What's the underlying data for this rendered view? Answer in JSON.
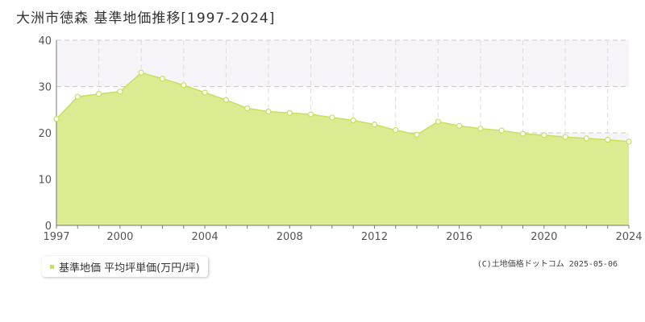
{
  "title": "大洲市徳森  基準地価推移[1997-2024]",
  "legend": {
    "label": "基準地価 平均坪単価(万円/坪)"
  },
  "copyright": "(C)土地価格ドットコム 2025-05-06",
  "colors": {
    "fill": "#dbeb92",
    "line": "#c8e05a",
    "point_fill": "#ffffff",
    "grid": "#cccccc",
    "band": "#f6f4f8"
  },
  "chart_data": {
    "type": "area",
    "title": "大洲市徳森  基準地価推移[1997-2024]",
    "xlabel": "",
    "ylabel": "",
    "x": [
      1997,
      1998,
      1999,
      2000,
      2001,
      2002,
      2003,
      2004,
      2005,
      2006,
      2007,
      2008,
      2009,
      2010,
      2011,
      2012,
      2013,
      2014,
      2015,
      2016,
      2017,
      2018,
      2019,
      2020,
      2021,
      2022,
      2023,
      2024
    ],
    "series": [
      {
        "name": "基準地価 平均坪単価(万円/坪)",
        "values": [
          23.0,
          27.8,
          28.4,
          28.9,
          33.0,
          31.7,
          30.3,
          28.7,
          27.1,
          25.3,
          24.6,
          24.3,
          24.0,
          23.3,
          22.7,
          21.8,
          20.6,
          19.6,
          22.4,
          21.5,
          20.9,
          20.5,
          19.8,
          19.5,
          19.1,
          18.8,
          18.5,
          18.1
        ]
      }
    ],
    "xlim": [
      1997,
      2024
    ],
    "ylim": [
      0,
      40
    ],
    "x_ticks": [
      "1997",
      "2000",
      "2004",
      "2008",
      "2012",
      "2016",
      "2020",
      "2024"
    ],
    "y_ticks": [
      "0",
      "10",
      "20",
      "30",
      "40"
    ],
    "grid": true,
    "legend_position": "bottom-left"
  }
}
